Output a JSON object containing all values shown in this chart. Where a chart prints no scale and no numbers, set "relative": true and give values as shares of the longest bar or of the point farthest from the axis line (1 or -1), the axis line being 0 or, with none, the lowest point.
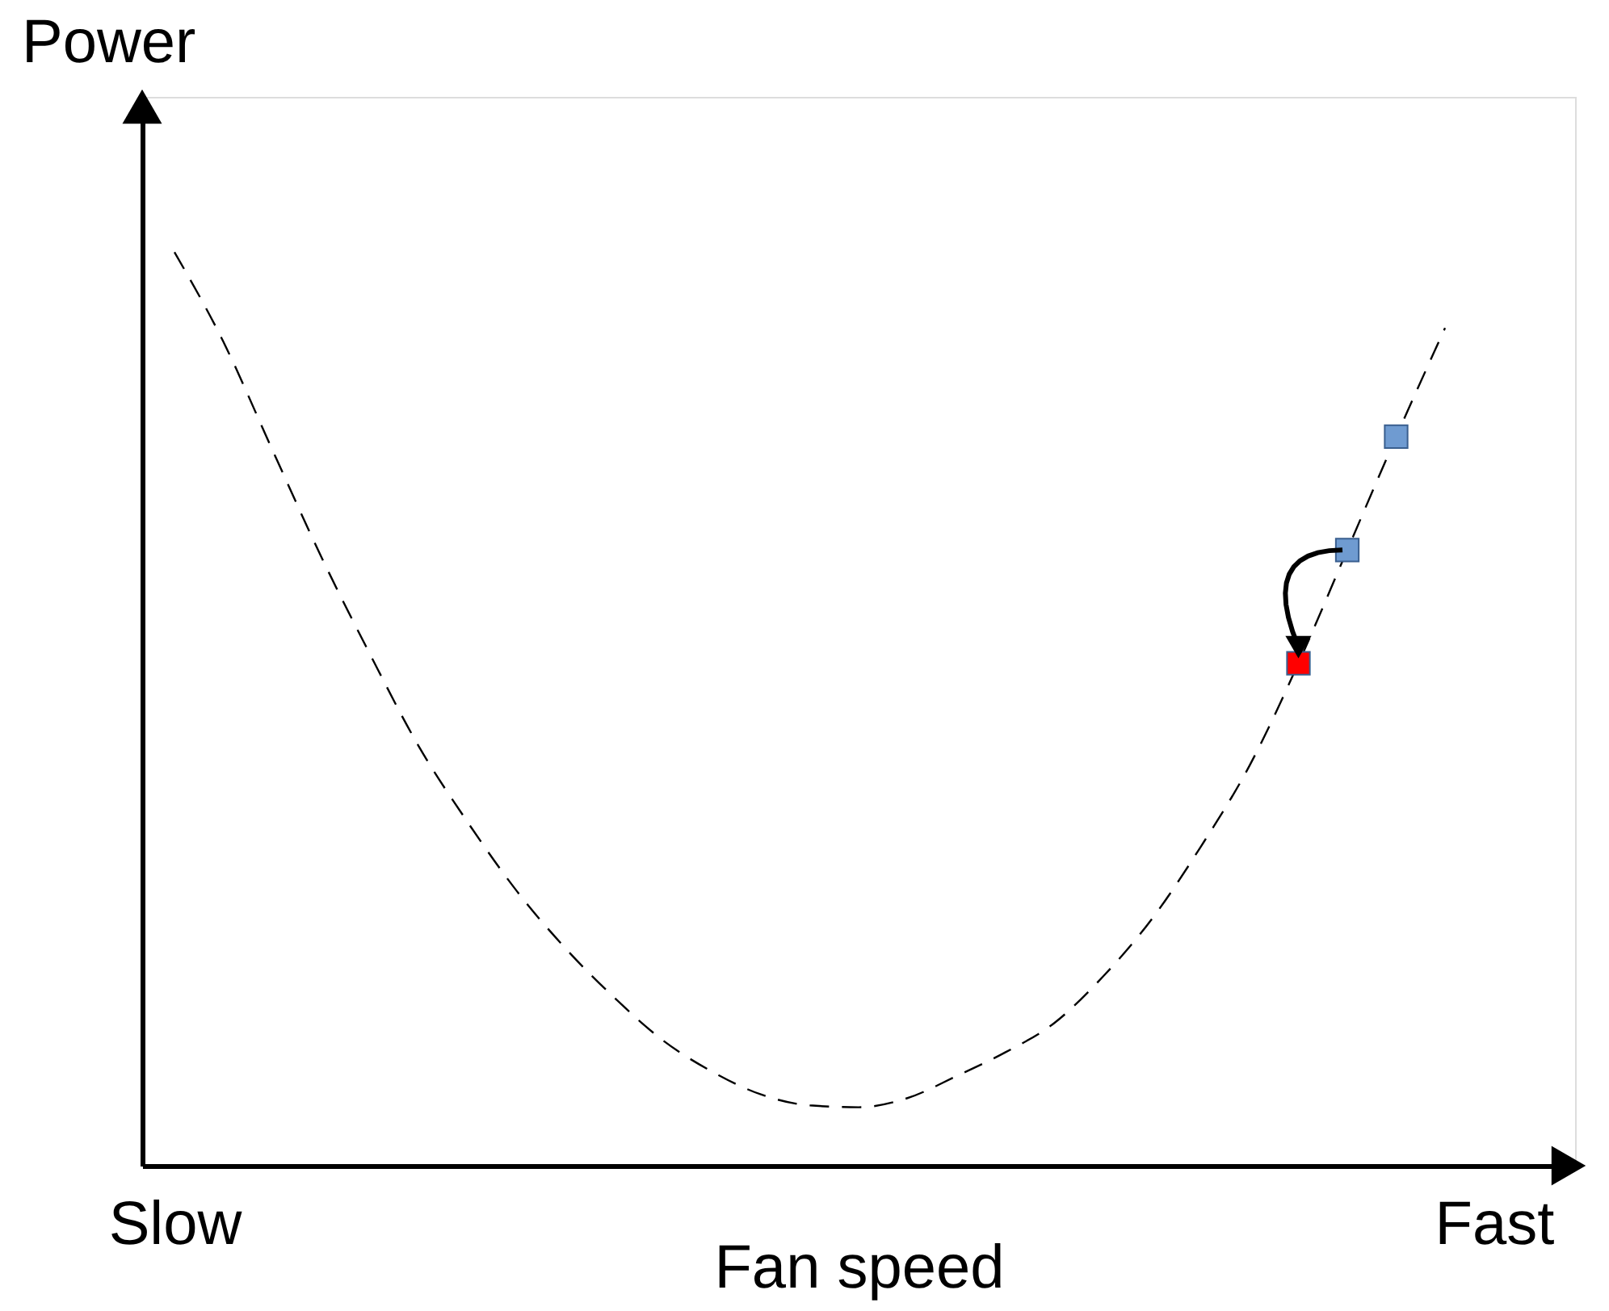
{
  "chart_data": {
    "type": "line",
    "relative": true,
    "xlabel": "Fan speed",
    "ylabel": "Power",
    "grid": false,
    "categories": [
      "Slow",
      null,
      null,
      null,
      null,
      null,
      null,
      null,
      null,
      null,
      null,
      null,
      null,
      null,
      null,
      null,
      null,
      null,
      null,
      null,
      null,
      null,
      null,
      null,
      null,
      null,
      null,
      "Fast",
      null
    ],
    "series": [
      {
        "color": "#000000",
        "line_style": "dashed",
        "marker": "none",
        "values": [
          1.0,
          0.902,
          0.784,
          0.667,
          0.56,
          0.459,
          0.376,
          0.301,
          0.238,
          0.184,
          0.137,
          0.103,
          0.078,
          0.066,
          0.064,
          0.074,
          0.098,
          0.124,
          0.156,
          0.207,
          0.27,
          0.349,
          0.438,
          0.55,
          0.674,
          0.798,
          0.917,
          null,
          null
        ]
      },
      {
        "type": "scatter",
        "marker": "square",
        "colors": [
          null,
          null,
          null,
          null,
          null,
          null,
          null,
          null,
          null,
          null,
          null,
          null,
          null,
          null,
          null,
          null,
          null,
          null,
          null,
          null,
          null,
          null,
          null,
          "#ff0000",
          "#6f9bd1",
          "#6f9bd1",
          null,
          null,
          null
        ],
        "values": [
          null,
          null,
          null,
          null,
          null,
          null,
          null,
          null,
          null,
          null,
          null,
          null,
          null,
          null,
          null,
          null,
          null,
          null,
          null,
          null,
          null,
          null,
          null,
          0.55,
          0.674,
          0.798,
          null,
          null,
          null
        ]
      }
    ]
  }
}
